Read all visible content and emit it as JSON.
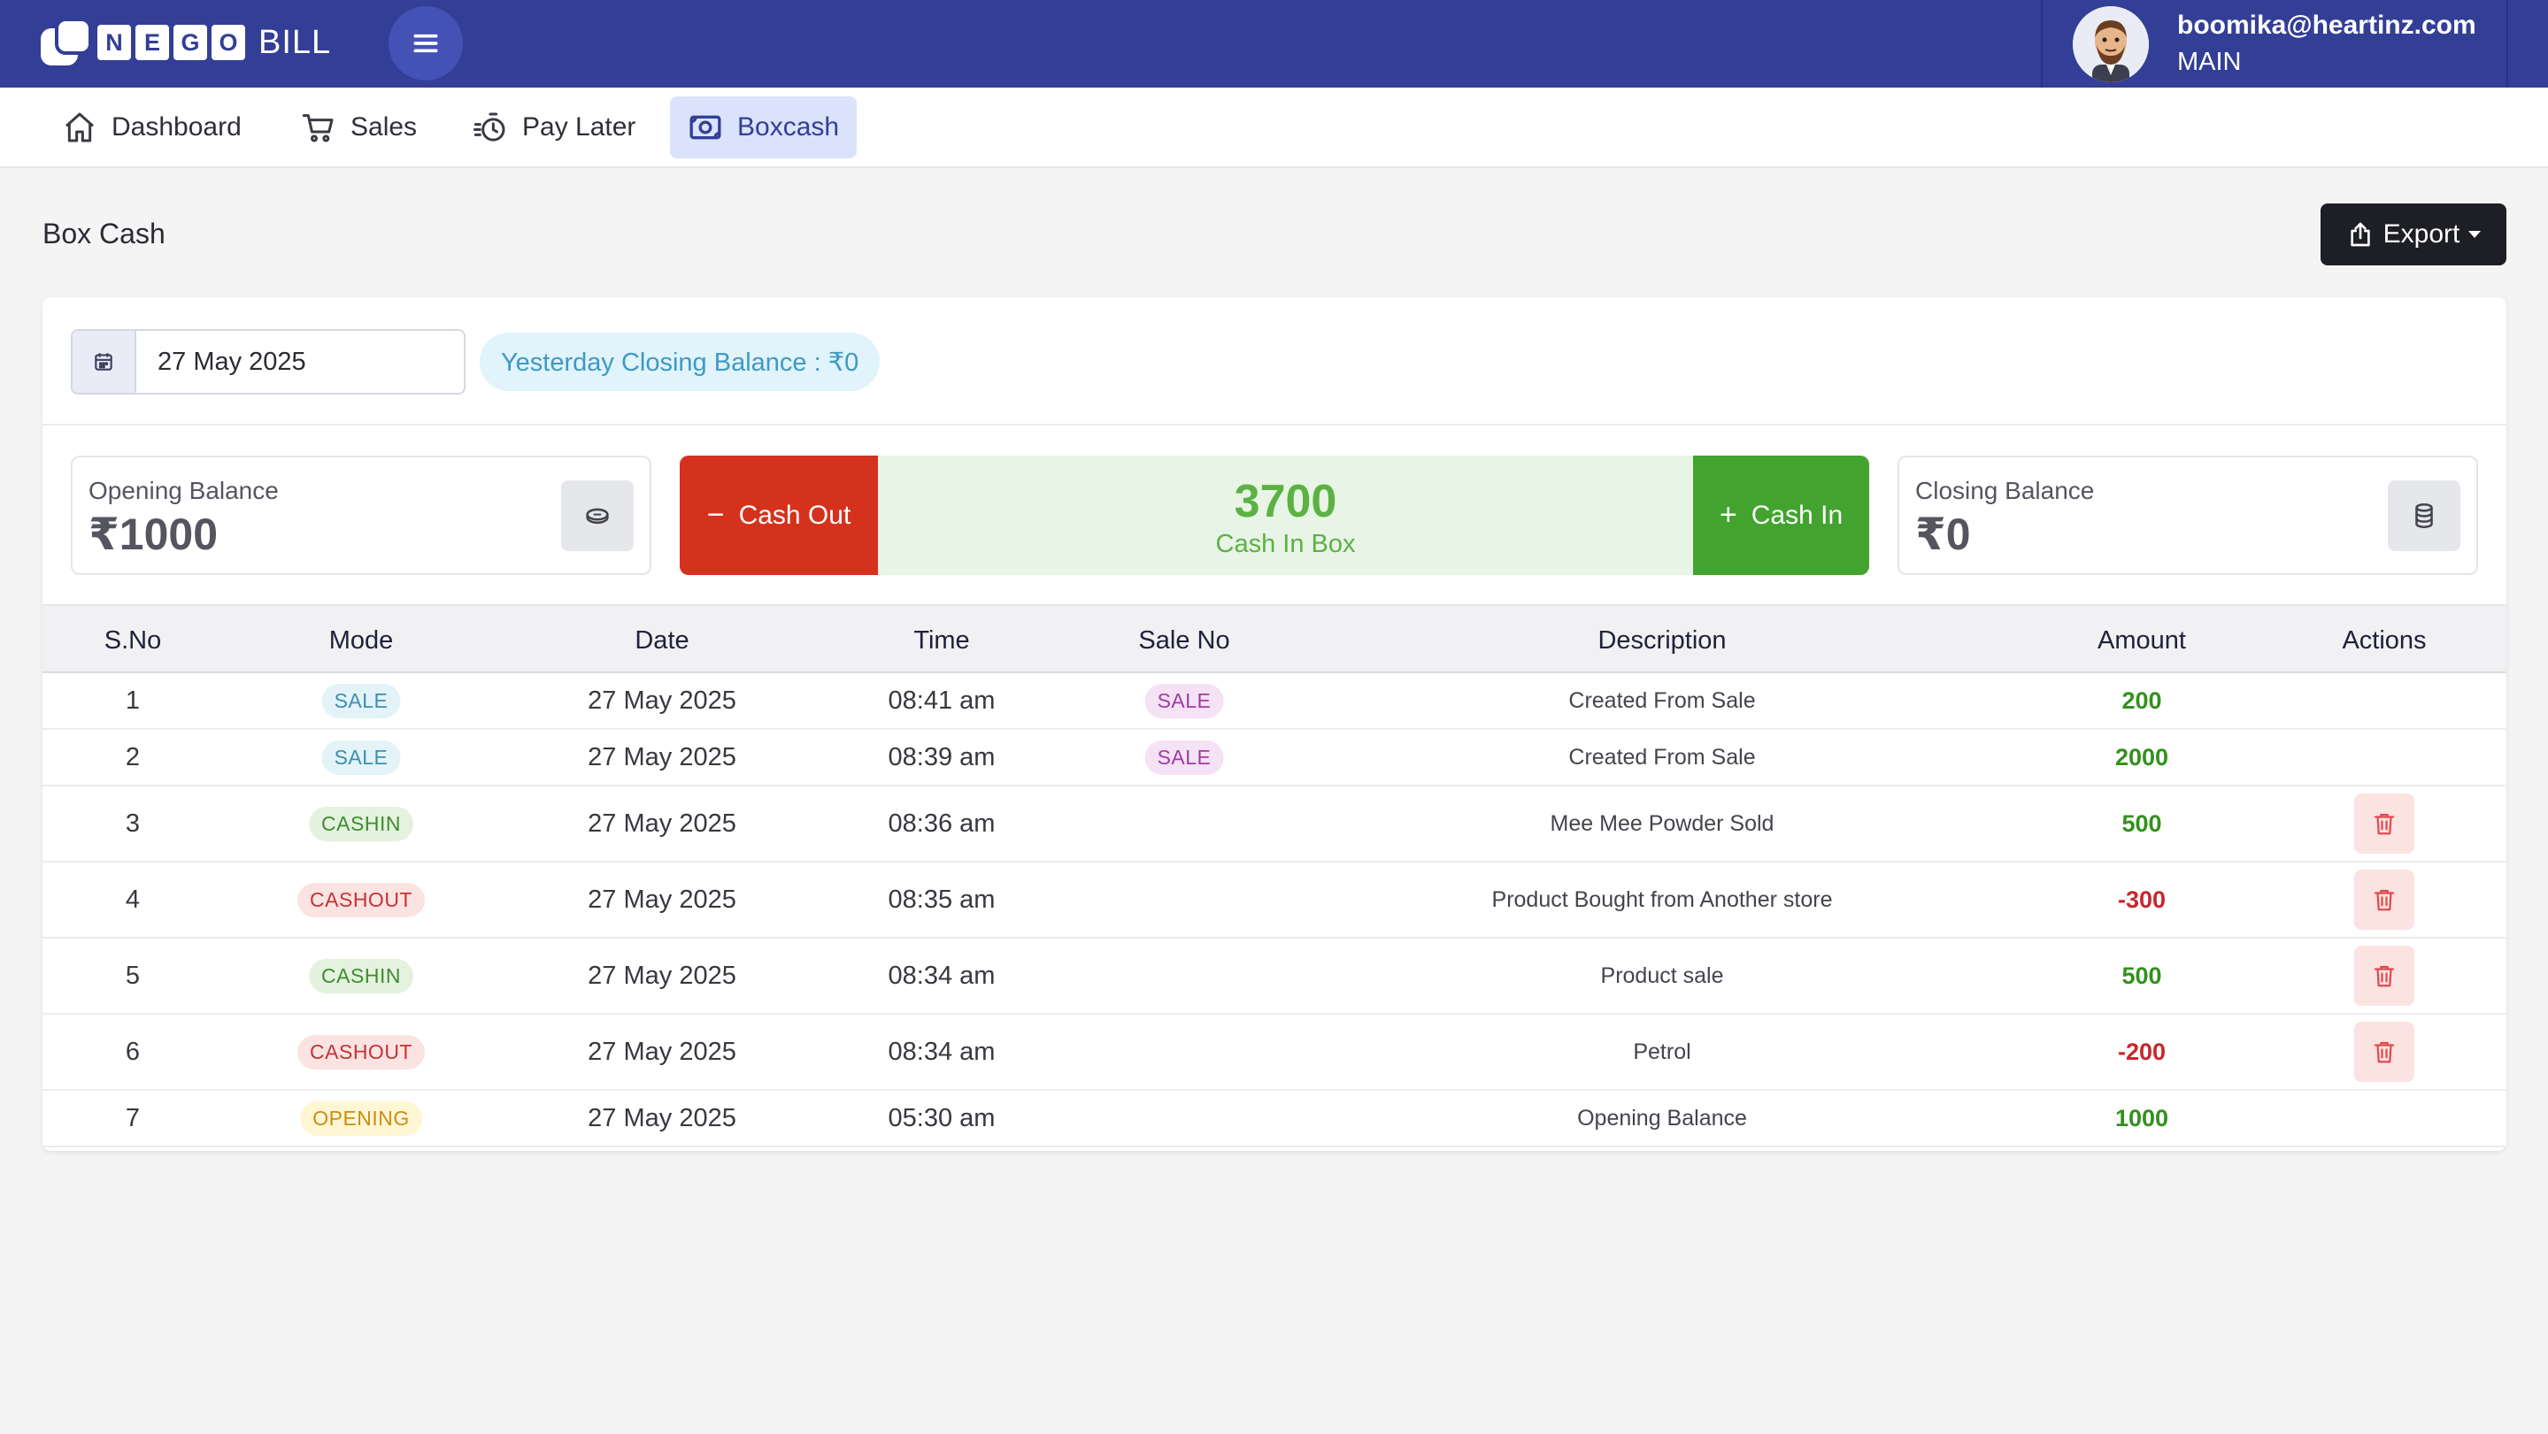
{
  "header": {
    "logo_letters": [
      "N",
      "E",
      "G",
      "O"
    ],
    "logo_suffix": "BILL",
    "user_email": "boomika@heartinz.com",
    "user_store": "MAIN"
  },
  "nav": {
    "items": [
      {
        "label": "Dashboard",
        "icon": "home-icon"
      },
      {
        "label": "Sales",
        "icon": "cart-icon"
      },
      {
        "label": "Pay Later",
        "icon": "stopwatch-icon"
      },
      {
        "label": "Boxcash",
        "icon": "cash-box-icon"
      }
    ],
    "active": "Boxcash"
  },
  "page": {
    "title": "Box Cash",
    "export_label": "Export"
  },
  "filters": {
    "date": "27 May 2025",
    "yesterday_balance": "Yesterday Closing Balance : ₹0"
  },
  "summary": {
    "opening_label": "Opening Balance",
    "opening_value": "₹1000",
    "cash_out_label": "Cash Out",
    "cash_in_label": "Cash In",
    "cash_in_box_value": "3700",
    "cash_in_box_label": "Cash In Box",
    "closing_label": "Closing Balance",
    "closing_value": "₹0"
  },
  "table": {
    "headers": [
      "S.No",
      "Mode",
      "Date",
      "Time",
      "Sale No",
      "Description",
      "Amount",
      "Actions"
    ],
    "rows": [
      {
        "sno": "1",
        "mode": "SALE",
        "date": "27 May 2025",
        "time": "08:41 am",
        "sale_no": "SALE",
        "description": "Created From Sale",
        "amount": "200",
        "deletable": false
      },
      {
        "sno": "2",
        "mode": "SALE",
        "date": "27 May 2025",
        "time": "08:39 am",
        "sale_no": "SALE",
        "description": "Created From Sale",
        "amount": "2000",
        "deletable": false
      },
      {
        "sno": "3",
        "mode": "CASHIN",
        "date": "27 May 2025",
        "time": "08:36 am",
        "sale_no": "",
        "description": "Mee Mee Powder Sold",
        "amount": "500",
        "deletable": true
      },
      {
        "sno": "4",
        "mode": "CASHOUT",
        "date": "27 May 2025",
        "time": "08:35 am",
        "sale_no": "",
        "description": "Product Bought from Another store",
        "amount": "-300",
        "deletable": true
      },
      {
        "sno": "5",
        "mode": "CASHIN",
        "date": "27 May 2025",
        "time": "08:34 am",
        "sale_no": "",
        "description": "Product sale",
        "amount": "500",
        "deletable": true
      },
      {
        "sno": "6",
        "mode": "CASHOUT",
        "date": "27 May 2025",
        "time": "08:34 am",
        "sale_no": "",
        "description": "Petrol",
        "amount": "-200",
        "deletable": true
      },
      {
        "sno": "7",
        "mode": "OPENING",
        "date": "27 May 2025",
        "time": "05:30 am",
        "sale_no": "",
        "description": "Opening Balance",
        "amount": "1000",
        "deletable": false
      }
    ]
  },
  "colors": {
    "header_bg": "#333e96",
    "cash_out": "#d5321e",
    "cash_in": "#42a42e",
    "positive": "#33911e",
    "negative": "#c9262b"
  }
}
